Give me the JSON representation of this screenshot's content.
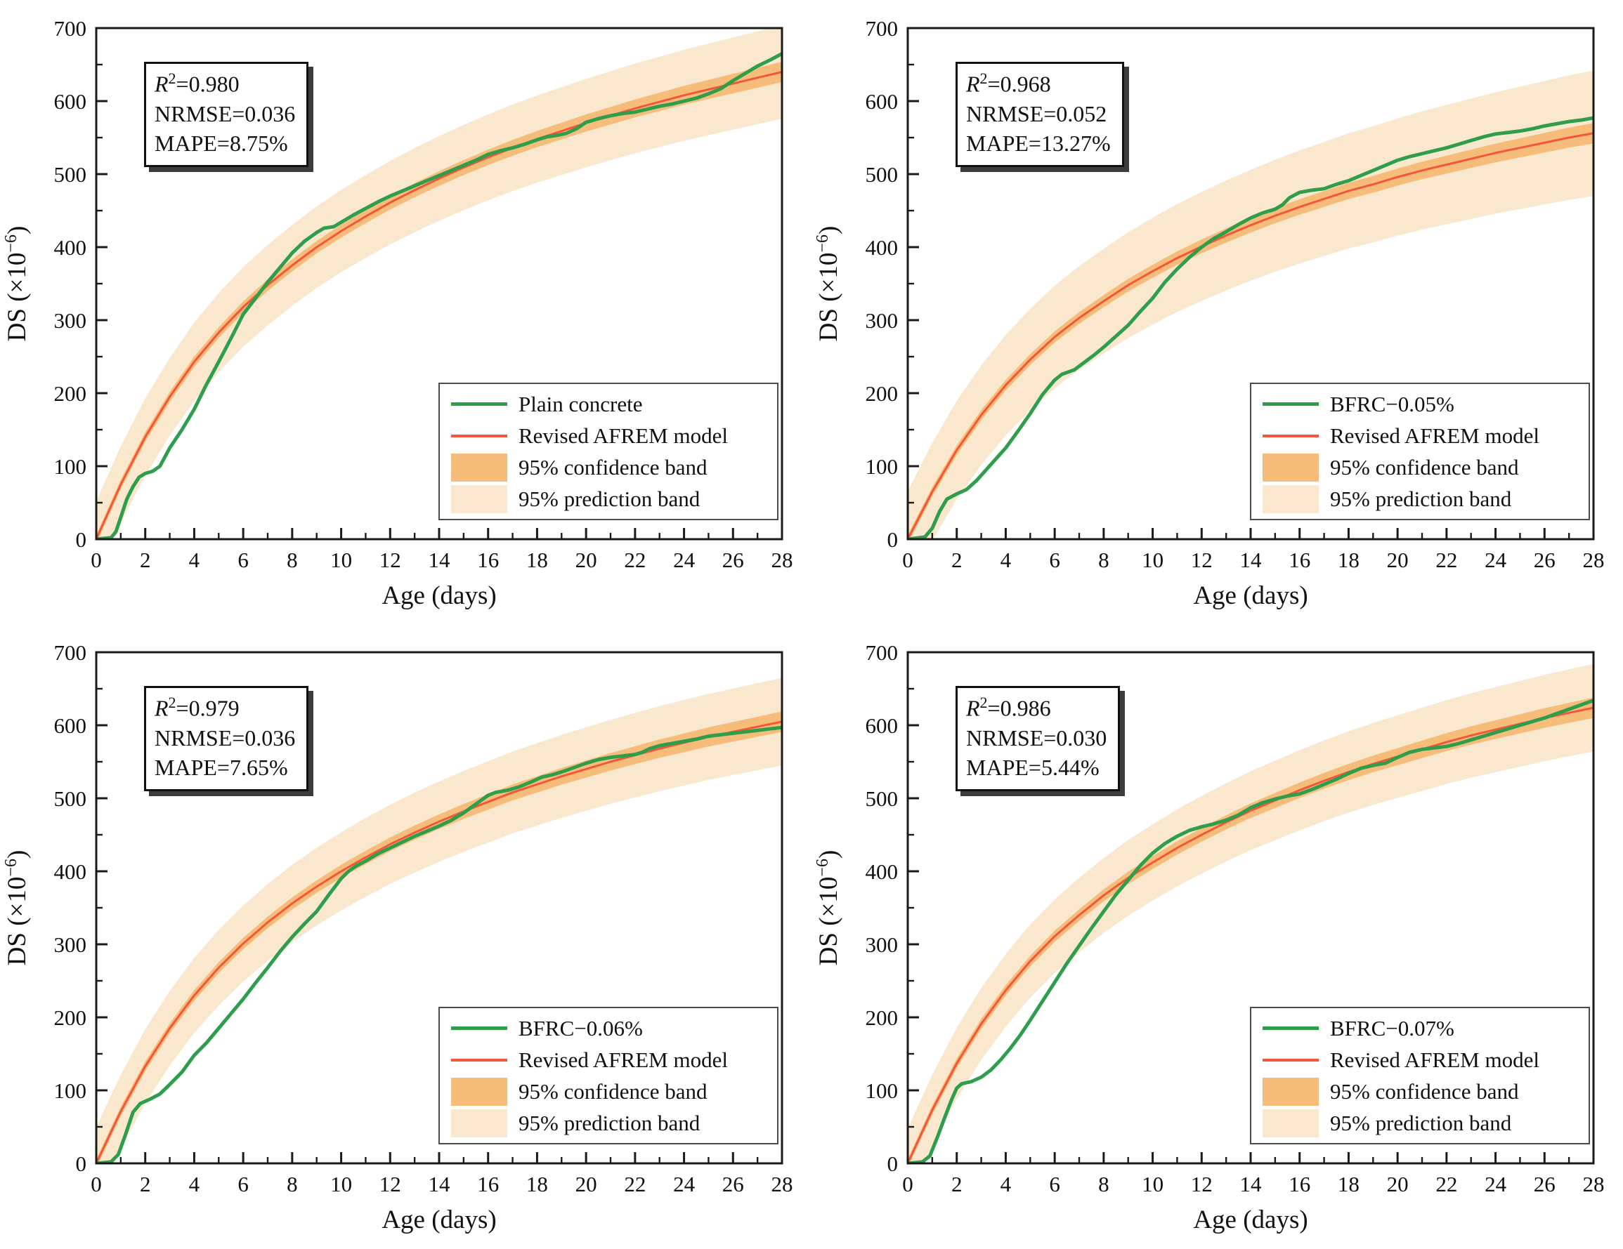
{
  "axes": {
    "xlabel": "Age (days)",
    "ylabel_pre": "DS (×10",
    "ylabel_sup": "−6",
    "ylabel_post": ")",
    "xlim": [
      0,
      28
    ],
    "ylim": [
      0,
      700
    ],
    "xtick_step": 2,
    "xminor_step": 1,
    "ytick_step": 100,
    "yminor_step": 50,
    "grid": false
  },
  "colors": {
    "measured": "#2E9E4C",
    "model": "#F4563A",
    "conf": "#F5BD79",
    "pred": "#FAE8CE",
    "axis": "#1a1a1a",
    "text": "#111111"
  },
  "stats_labels": {
    "r": "R",
    "sup": "2"
  },
  "legend_common": {
    "model": "Revised AFREM model",
    "conf": "95% confidence band",
    "pred": "95% prediction band"
  },
  "chart_data": [
    {
      "type": "line",
      "series_label": "Plain concrete",
      "stats": {
        "r2": "=0.980",
        "nrmse": "NRMSE=0.036",
        "mape": "MAPE=8.75%"
      },
      "model_t_step": 1,
      "model_y": [
        0,
        75,
        140,
        195,
        243,
        283,
        318,
        348,
        375,
        400,
        422,
        442,
        461,
        478,
        494,
        509,
        523,
        536,
        548,
        559,
        570,
        580,
        590,
        599,
        608,
        616,
        624,
        632,
        640
      ],
      "pred_hw": [
        52,
        64
      ],
      "conf_hw": [
        6,
        14
      ],
      "measured": [
        [
          0,
          0
        ],
        [
          0.6,
          2
        ],
        [
          0.8,
          10
        ],
        [
          1,
          30
        ],
        [
          1.25,
          55
        ],
        [
          1.5,
          72
        ],
        [
          1.75,
          85
        ],
        [
          2,
          90
        ],
        [
          2.3,
          93
        ],
        [
          2.6,
          100
        ],
        [
          3,
          125
        ],
        [
          3.5,
          150
        ],
        [
          4,
          178
        ],
        [
          4.5,
          212
        ],
        [
          5,
          243
        ],
        [
          5.5,
          275
        ],
        [
          6,
          308
        ],
        [
          6.5,
          330
        ],
        [
          7,
          352
        ],
        [
          7.5,
          372
        ],
        [
          8,
          392
        ],
        [
          8.5,
          408
        ],
        [
          9,
          420
        ],
        [
          9.3,
          426
        ],
        [
          9.7,
          428
        ],
        [
          10,
          434
        ],
        [
          10.5,
          444
        ],
        [
          11,
          453
        ],
        [
          11.5,
          462
        ],
        [
          12,
          470
        ],
        [
          12.5,
          477
        ],
        [
          13,
          484
        ],
        [
          13.5,
          491
        ],
        [
          14,
          498
        ],
        [
          14.5,
          505
        ],
        [
          15,
          512
        ],
        [
          15.5,
          519
        ],
        [
          16,
          527
        ],
        [
          16.5,
          532
        ],
        [
          17,
          536
        ],
        [
          17.5,
          541
        ],
        [
          18,
          547
        ],
        [
          18.4,
          551
        ],
        [
          18.8,
          553
        ],
        [
          19.2,
          556
        ],
        [
          19.6,
          562
        ],
        [
          20,
          571
        ],
        [
          20.5,
          576
        ],
        [
          21,
          580
        ],
        [
          21.5,
          583
        ],
        [
          22,
          585
        ],
        [
          22.5,
          589
        ],
        [
          23,
          593
        ],
        [
          23.5,
          596
        ],
        [
          24,
          600
        ],
        [
          24.5,
          604
        ],
        [
          25,
          610
        ],
        [
          25.5,
          617
        ],
        [
          26,
          628
        ],
        [
          26.5,
          638
        ],
        [
          27,
          648
        ],
        [
          27.5,
          656
        ],
        [
          28,
          665
        ]
      ]
    },
    {
      "type": "line",
      "series_label": "BFRC−0.05%",
      "stats": {
        "r2": "=0.968",
        "nrmse": "NRMSE=0.052",
        "mape": "MAPE=13.27%"
      },
      "model_t_step": 1,
      "model_y": [
        0,
        65,
        122,
        170,
        211,
        246,
        277,
        303,
        326,
        348,
        367,
        385,
        401,
        416,
        430,
        443,
        455,
        466,
        477,
        486,
        496,
        505,
        513,
        521,
        529,
        536,
        543,
        550,
        556
      ],
      "pred_hw": [
        66,
        86
      ],
      "conf_hw": [
        6,
        14
      ],
      "measured": [
        [
          0,
          0
        ],
        [
          0.7,
          3
        ],
        [
          1,
          15
        ],
        [
          1.3,
          38
        ],
        [
          1.6,
          55
        ],
        [
          2,
          62
        ],
        [
          2.4,
          68
        ],
        [
          2.8,
          80
        ],
        [
          3.2,
          95
        ],
        [
          3.6,
          110
        ],
        [
          4,
          125
        ],
        [
          4.5,
          148
        ],
        [
          5,
          172
        ],
        [
          5.5,
          198
        ],
        [
          6,
          218
        ],
        [
          6.3,
          226
        ],
        [
          6.8,
          232
        ],
        [
          7.2,
          242
        ],
        [
          7.6,
          252
        ],
        [
          8,
          263
        ],
        [
          8.5,
          278
        ],
        [
          9,
          293
        ],
        [
          9.5,
          312
        ],
        [
          10,
          330
        ],
        [
          10.5,
          352
        ],
        [
          11,
          370
        ],
        [
          11.5,
          386
        ],
        [
          12,
          400
        ],
        [
          12.5,
          412
        ],
        [
          13,
          421
        ],
        [
          13.5,
          431
        ],
        [
          14,
          440
        ],
        [
          14.5,
          447
        ],
        [
          15,
          452
        ],
        [
          15.3,
          458
        ],
        [
          15.6,
          468
        ],
        [
          16,
          475
        ],
        [
          16.5,
          478
        ],
        [
          17,
          480
        ],
        [
          17.5,
          486
        ],
        [
          18,
          491
        ],
        [
          18.5,
          498
        ],
        [
          19,
          505
        ],
        [
          19.5,
          512
        ],
        [
          20,
          519
        ],
        [
          20.5,
          524
        ],
        [
          21,
          528
        ],
        [
          21.5,
          532
        ],
        [
          22,
          536
        ],
        [
          22.5,
          541
        ],
        [
          23,
          546
        ],
        [
          23.5,
          551
        ],
        [
          24,
          555
        ],
        [
          24.5,
          557
        ],
        [
          25,
          559
        ],
        [
          25.5,
          562
        ],
        [
          26,
          566
        ],
        [
          26.5,
          569
        ],
        [
          27,
          572
        ],
        [
          27.5,
          574
        ],
        [
          28,
          577
        ]
      ]
    },
    {
      "type": "line",
      "series_label": "BFRC−0.06%",
      "stats": {
        "r2": "=0.979",
        "nrmse": "NRMSE=0.036",
        "mape": "MAPE=7.65%"
      },
      "model_t_step": 1,
      "model_y": [
        0,
        71,
        133,
        185,
        230,
        268,
        301,
        330,
        356,
        379,
        400,
        419,
        437,
        453,
        468,
        482,
        495,
        508,
        519,
        530,
        540,
        550,
        559,
        568,
        576,
        584,
        591,
        598,
        605
      ],
      "pred_hw": [
        50,
        60
      ],
      "conf_hw": [
        6,
        14
      ],
      "measured": [
        [
          0,
          0
        ],
        [
          0.6,
          2
        ],
        [
          0.9,
          12
        ],
        [
          1.2,
          40
        ],
        [
          1.5,
          70
        ],
        [
          1.8,
          82
        ],
        [
          2.2,
          88
        ],
        [
          2.6,
          95
        ],
        [
          3,
          108
        ],
        [
          3.5,
          125
        ],
        [
          4,
          148
        ],
        [
          4.5,
          165
        ],
        [
          5,
          185
        ],
        [
          5.5,
          205
        ],
        [
          6,
          225
        ],
        [
          6.5,
          247
        ],
        [
          7,
          268
        ],
        [
          7.5,
          290
        ],
        [
          8,
          310
        ],
        [
          8.5,
          328
        ],
        [
          9,
          345
        ],
        [
          9.5,
          368
        ],
        [
          10,
          390
        ],
        [
          10.3,
          400
        ],
        [
          10.6,
          407
        ],
        [
          11,
          414
        ],
        [
          11.5,
          424
        ],
        [
          12,
          432
        ],
        [
          12.5,
          440
        ],
        [
          13,
          448
        ],
        [
          13.5,
          455
        ],
        [
          14,
          462
        ],
        [
          14.5,
          470
        ],
        [
          15,
          480
        ],
        [
          15.5,
          492
        ],
        [
          16,
          504
        ],
        [
          16.3,
          508
        ],
        [
          16.8,
          511
        ],
        [
          17.3,
          516
        ],
        [
          17.8,
          523
        ],
        [
          18.2,
          529
        ],
        [
          18.6,
          532
        ],
        [
          19,
          536
        ],
        [
          19.5,
          542
        ],
        [
          20,
          548
        ],
        [
          20.5,
          553
        ],
        [
          21,
          556
        ],
        [
          21.5,
          558
        ],
        [
          22,
          560
        ],
        [
          22.3,
          563
        ],
        [
          22.6,
          568
        ],
        [
          23,
          572
        ],
        [
          23.5,
          575
        ],
        [
          24,
          578
        ],
        [
          24.5,
          581
        ],
        [
          25,
          585
        ],
        [
          25.5,
          587
        ],
        [
          26,
          589
        ],
        [
          26.5,
          591
        ],
        [
          27,
          593
        ],
        [
          27.5,
          595
        ],
        [
          28,
          597
        ]
      ]
    },
    {
      "type": "line",
      "series_label": "BFRC−0.07%",
      "stats": {
        "r2": "=0.986",
        "nrmse": "NRMSE=0.030",
        "mape": "MAPE=5.44%"
      },
      "model_t_step": 1,
      "model_y": [
        0,
        73,
        137,
        191,
        237,
        277,
        311,
        340,
        367,
        391,
        412,
        432,
        450,
        467,
        483,
        497,
        511,
        524,
        536,
        547,
        557,
        567,
        577,
        586,
        594,
        602,
        610,
        617,
        624
      ],
      "pred_hw": [
        48,
        60
      ],
      "conf_hw": [
        6,
        14
      ],
      "measured": [
        [
          0,
          0
        ],
        [
          0.6,
          2
        ],
        [
          0.9,
          10
        ],
        [
          1.2,
          35
        ],
        [
          1.5,
          62
        ],
        [
          1.8,
          88
        ],
        [
          2,
          103
        ],
        [
          2.2,
          109
        ],
        [
          2.6,
          112
        ],
        [
          3,
          118
        ],
        [
          3.4,
          128
        ],
        [
          3.8,
          142
        ],
        [
          4.2,
          158
        ],
        [
          4.6,
          176
        ],
        [
          5,
          196
        ],
        [
          5.5,
          222
        ],
        [
          6,
          248
        ],
        [
          6.5,
          274
        ],
        [
          7,
          298
        ],
        [
          7.5,
          322
        ],
        [
          8,
          345
        ],
        [
          8.5,
          368
        ],
        [
          9,
          388
        ],
        [
          9.5,
          408
        ],
        [
          10,
          425
        ],
        [
          10.5,
          438
        ],
        [
          11,
          448
        ],
        [
          11.5,
          456
        ],
        [
          12,
          461
        ],
        [
          12.5,
          465
        ],
        [
          13,
          470
        ],
        [
          13.5,
          477
        ],
        [
          14,
          487
        ],
        [
          14.5,
          494
        ],
        [
          15,
          499
        ],
        [
          15.5,
          503
        ],
        [
          16,
          506
        ],
        [
          16.5,
          512
        ],
        [
          17,
          519
        ],
        [
          17.5,
          526
        ],
        [
          18,
          534
        ],
        [
          18.5,
          541
        ],
        [
          19,
          545
        ],
        [
          19.5,
          548
        ],
        [
          20,
          556
        ],
        [
          20.5,
          563
        ],
        [
          21,
          567
        ],
        [
          21.5,
          569
        ],
        [
          22,
          571
        ],
        [
          22.5,
          575
        ],
        [
          23,
          580
        ],
        [
          23.5,
          585
        ],
        [
          24,
          590
        ],
        [
          24.5,
          595
        ],
        [
          25,
          600
        ],
        [
          25.5,
          605
        ],
        [
          26,
          610
        ],
        [
          26.5,
          616
        ],
        [
          27,
          622
        ],
        [
          27.5,
          628
        ],
        [
          28,
          634
        ]
      ]
    }
  ]
}
